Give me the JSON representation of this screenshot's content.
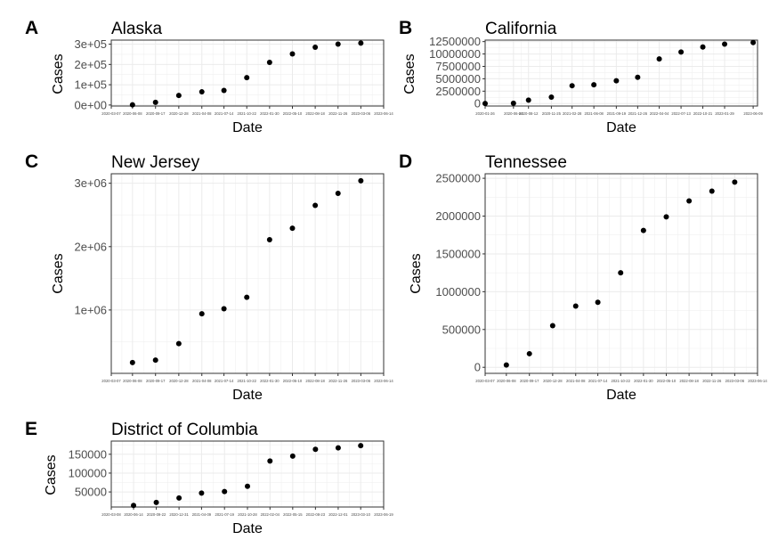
{
  "chart_data": [
    {
      "type": "scatter",
      "label": "A",
      "title": "Alaska",
      "xlabel": "Date",
      "ylabel": "Cases",
      "grid": true,
      "xlim": [
        "2020-03-07",
        "2023-06-14"
      ],
      "x_ticks": [
        "2020-03-07",
        "2020-06-08",
        "2020-09-17",
        "2020-12-28",
        "2021-04-08",
        "2021-07-14",
        "2021-10-22",
        "2022-01-30",
        "2022-05-10",
        "2022-08-18",
        "2022-11-26",
        "2023-03-06",
        "2023-06-14"
      ],
      "ylim": [
        -5000,
        320000
      ],
      "y_ticks": [
        0,
        100000,
        200000,
        300000
      ],
      "y_tick_labels": [
        "0e+00",
        "1e+05",
        "2e+05",
        "3e+05"
      ],
      "x": [
        "2020-06-08",
        "2020-09-17",
        "2020-12-28",
        "2021-04-08",
        "2021-07-14",
        "2021-10-22",
        "2022-01-30",
        "2022-05-10",
        "2022-08-18",
        "2022-11-26",
        "2023-03-06"
      ],
      "values": [
        800,
        13000,
        47000,
        65000,
        72000,
        135000,
        210000,
        252000,
        285000,
        300000,
        305000
      ]
    },
    {
      "type": "scatter",
      "label": "B",
      "title": "California",
      "xlabel": "Date",
      "ylabel": "Cases",
      "grid": true,
      "xlim": [
        "2020-01-26",
        "2023-06-29"
      ],
      "x_ticks": [
        "2020-01-26",
        "2020-06-04",
        "2020-08-12",
        "2020-11-25",
        "2021-02-28",
        "2021-06-08",
        "2021-09-19",
        "2021-12-26",
        "2022-04-04",
        "2022-07-13",
        "2022-10-21",
        "2023-01-29",
        "2023-06-09"
      ],
      "ylim": [
        -500000,
        12800000
      ],
      "y_ticks": [
        0,
        2500000,
        5000000,
        7500000,
        10000000,
        12500000
      ],
      "y_tick_labels": [
        "0",
        "2500000",
        "5000000",
        "7500000",
        "10000000",
        "12500000"
      ],
      "x": [
        "2020-01-26",
        "2020-06-04",
        "2020-08-12",
        "2020-11-25",
        "2021-02-28",
        "2021-06-08",
        "2021-09-19",
        "2021-12-26",
        "2022-04-04",
        "2022-07-13",
        "2022-10-21",
        "2023-01-29",
        "2023-06-09"
      ],
      "values": [
        10000,
        60000,
        700000,
        1300000,
        3600000,
        3800000,
        4600000,
        5300000,
        9000000,
        10400000,
        11400000,
        12000000,
        12300000
      ]
    },
    {
      "type": "scatter",
      "label": "C",
      "title": "New Jersey",
      "xlabel": "Date",
      "ylabel": "Cases",
      "grid": true,
      "xlim": [
        "2020-03-07",
        "2023-06-14"
      ],
      "x_ticks": [
        "2020-03-07",
        "2020-06-08",
        "2020-09-17",
        "2020-12-28",
        "2021-04-08",
        "2021-07-14",
        "2021-10-22",
        "2022-01-30",
        "2022-05-10",
        "2022-08-18",
        "2022-11-26",
        "2023-03-06",
        "2023-06-14"
      ],
      "ylim": [
        0,
        3150000
      ],
      "y_ticks": [
        1000000,
        2000000,
        3000000
      ],
      "y_tick_labels": [
        "1e+06",
        "2e+06",
        "3e+06"
      ],
      "x": [
        "2020-06-08",
        "2020-09-17",
        "2020-12-28",
        "2021-04-08",
        "2021-07-14",
        "2021-10-22",
        "2022-01-30",
        "2022-05-10",
        "2022-08-18",
        "2022-11-26",
        "2023-03-06"
      ],
      "values": [
        170000,
        210000,
        470000,
        940000,
        1020000,
        1200000,
        2110000,
        2290000,
        2650000,
        2840000,
        3040000
      ]
    },
    {
      "type": "scatter",
      "label": "D",
      "title": "Tennessee",
      "xlabel": "Date",
      "ylabel": "Cases",
      "grid": true,
      "xlim": [
        "2020-03-07",
        "2023-06-14"
      ],
      "x_ticks": [
        "2020-03-07",
        "2020-06-08",
        "2020-09-17",
        "2020-12-28",
        "2021-04-08",
        "2021-07-14",
        "2021-10-22",
        "2022-01-30",
        "2022-05-10",
        "2022-08-18",
        "2022-11-26",
        "2023-03-06",
        "2023-06-14"
      ],
      "ylim": [
        -80000,
        2560000
      ],
      "y_ticks": [
        0,
        500000,
        1000000,
        1500000,
        2000000,
        2500000
      ],
      "y_tick_labels": [
        "0",
        "500000",
        "1000000",
        "1500000",
        "2000000",
        "2500000"
      ],
      "x": [
        "2020-06-08",
        "2020-09-17",
        "2020-12-28",
        "2021-04-08",
        "2021-07-14",
        "2021-10-22",
        "2022-01-30",
        "2022-05-10",
        "2022-08-18",
        "2022-11-26",
        "2023-03-06"
      ],
      "values": [
        30000,
        180000,
        550000,
        810000,
        860000,
        1250000,
        1810000,
        1990000,
        2200000,
        2330000,
        2450000
      ]
    },
    {
      "type": "scatter",
      "label": "E",
      "title": "District of Columbia",
      "xlabel": "Date",
      "ylabel": "Cases",
      "grid": true,
      "xlim": [
        "2020-03-08",
        "2023-06-19"
      ],
      "x_ticks": [
        "2020-03-08",
        "2020-06-14",
        "2020-09-22",
        "2020-12-31",
        "2021-04-09",
        "2021-07-19",
        "2021-10-28",
        "2022-02-04",
        "2022-05-15",
        "2022-08-23",
        "2022-12-01",
        "2023-03-10",
        "2023-06-19"
      ],
      "ylim": [
        10000,
        185000
      ],
      "y_ticks": [
        50000,
        100000,
        150000
      ],
      "y_tick_labels": [
        "50000",
        "100000",
        "150000"
      ],
      "x": [
        "2020-06-14",
        "2020-09-22",
        "2020-12-31",
        "2021-04-09",
        "2021-07-19",
        "2021-10-28",
        "2022-02-04",
        "2022-05-15",
        "2022-08-23",
        "2022-12-01",
        "2023-03-10"
      ],
      "values": [
        14000,
        22000,
        34000,
        47000,
        51000,
        65000,
        132000,
        145000,
        163000,
        167000,
        173000
      ]
    }
  ]
}
